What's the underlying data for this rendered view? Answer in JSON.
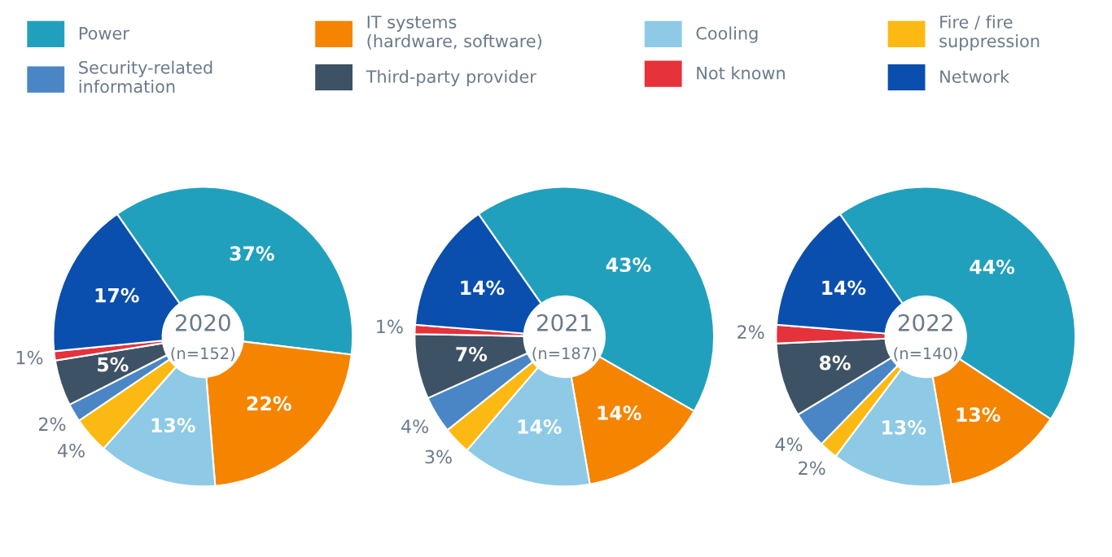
{
  "chart_data": [
    {
      "type": "donut",
      "title": "2020",
      "subtitle": "(n=152)",
      "legend": "top",
      "categories": [
        "Power",
        "IT systems\n(hardware, software)",
        "Cooling",
        "Fire / fire\nsuppression",
        "Security-related\ninformation",
        "Third-party provider",
        "Not known",
        "Network"
      ],
      "values": [
        37,
        22,
        13,
        4,
        2,
        5,
        1,
        17
      ],
      "value_labels": [
        "37%",
        "22%",
        "13%",
        "4%",
        "2%",
        "5%",
        "1%",
        "17%"
      ],
      "colors": [
        "#21a0bd",
        "#f58400",
        "#8ecae6",
        "#fdb913",
        "#4a86c5",
        "#3e5266",
        "#e5323b",
        "#0a4fad"
      ]
    },
    {
      "type": "donut",
      "title": "2021",
      "subtitle": "(n=187)",
      "values": [
        43,
        14,
        14,
        3,
        4,
        7,
        1,
        14
      ],
      "value_labels": [
        "43%",
        "14%",
        "14%",
        "3%",
        "4%",
        "7%",
        "1%",
        "14%"
      ],
      "colors": [
        "#21a0bd",
        "#f58400",
        "#8ecae6",
        "#fdb913",
        "#4a86c5",
        "#3e5266",
        "#e5323b",
        "#0a4fad"
      ]
    },
    {
      "type": "donut",
      "title": "2022",
      "subtitle": "(n=140)",
      "values": [
        44,
        13,
        13,
        2,
        4,
        8,
        2,
        14
      ],
      "value_labels": [
        "44%",
        "13%",
        "13%",
        "2%",
        "4%",
        "8%",
        "2%",
        "14%"
      ],
      "colors": [
        "#21a0bd",
        "#f58400",
        "#8ecae6",
        "#fdb913",
        "#4a86c5",
        "#3e5266",
        "#e5323b",
        "#0a4fad"
      ]
    }
  ]
}
